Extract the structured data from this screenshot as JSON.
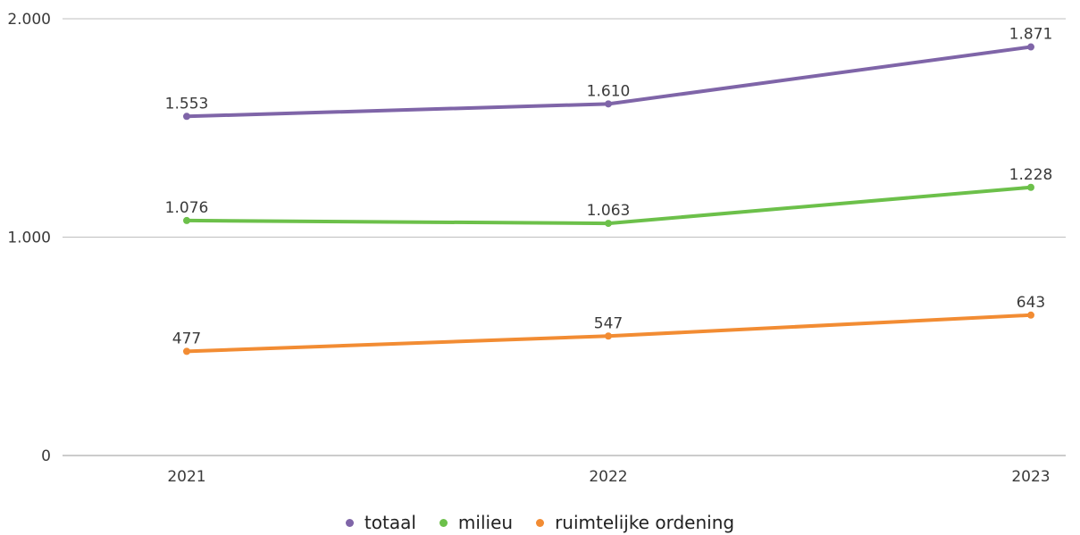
{
  "chart_data": {
    "type": "line",
    "title": "",
    "xlabel": "",
    "ylabel": "",
    "categories": [
      "2021",
      "2022",
      "2023"
    ],
    "ylim": [
      0,
      2000
    ],
    "y_ticks": [
      0,
      1000,
      2000
    ],
    "y_tick_labels": [
      "0",
      "1.000",
      "2.000"
    ],
    "grid": true,
    "legend_position": "bottom",
    "series": [
      {
        "name": "totaal",
        "color": "#7f65a8",
        "values": [
          1553,
          1610,
          1871
        ],
        "labels": [
          "1.553",
          "1.610",
          "1.871"
        ]
      },
      {
        "name": "milieu",
        "color": "#6cc04a",
        "values": [
          1076,
          1063,
          1228
        ],
        "labels": [
          "1.076",
          "1.063",
          "1.228"
        ]
      },
      {
        "name": "ruimtelijke ordening",
        "color": "#f28c33",
        "values": [
          477,
          547,
          643
        ],
        "labels": [
          "477",
          "547",
          "643"
        ]
      }
    ]
  }
}
